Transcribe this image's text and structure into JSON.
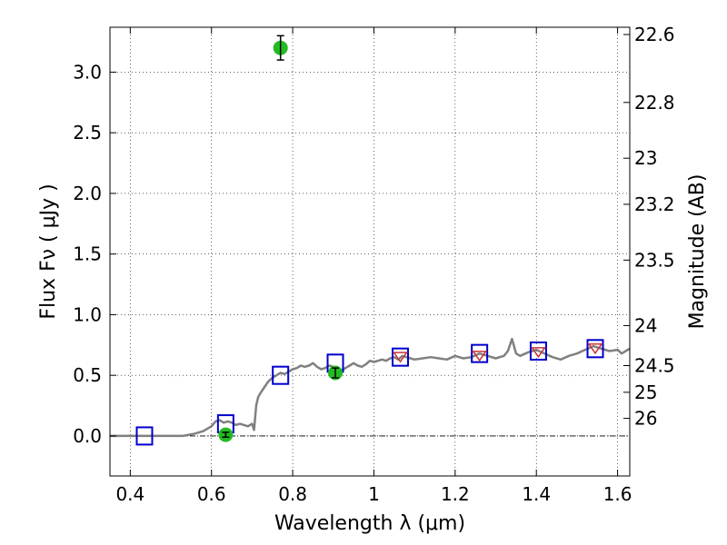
{
  "chart_data": {
    "type": "scatter",
    "xlabel": "Wavelength  λ (μm)",
    "ylabel": "Flux  Fν  ( μJy )",
    "y2label": "Magnitude (AB)",
    "xlim": [
      0.35,
      1.63
    ],
    "ylim": [
      -0.33,
      3.37
    ],
    "grid": true,
    "x_ticks": [
      0.4,
      0.6,
      0.8,
      1.0,
      1.2,
      1.4,
      1.6
    ],
    "x_tick_labels": [
      "0.4",
      "0.6",
      "0.8",
      "1",
      "1.2",
      "1.4",
      "1.6"
    ],
    "y_ticks": [
      0.0,
      0.5,
      1.0,
      1.5,
      2.0,
      2.5,
      3.0
    ],
    "y_tick_labels": [
      "0.0",
      "0.5",
      "1.0",
      "1.5",
      "2.0",
      "2.5",
      "3.0"
    ],
    "mag_ticks": [
      {
        "label": "22.6",
        "flux": 3.31
      },
      {
        "label": "22.8",
        "flux": 2.75
      },
      {
        "label": "23",
        "flux": 2.29
      },
      {
        "label": "23.2",
        "flux": 1.91
      },
      {
        "label": "23.5",
        "flux": 1.45
      },
      {
        "label": "24",
        "flux": 0.91
      },
      {
        "label": "24.5",
        "flux": 0.58
      },
      {
        "label": "25",
        "flux": 0.36
      },
      {
        "label": "26",
        "flux": 0.145
      }
    ],
    "colors": {
      "observed": "#22bb22",
      "model_box": "#0000cc",
      "model_spectrum_point": "#cc3333",
      "template": "#808080",
      "zero_line": "#000000"
    },
    "template_spectrum": {
      "x": [
        0.35,
        0.44,
        0.5,
        0.53,
        0.56,
        0.58,
        0.6,
        0.61,
        0.62,
        0.63,
        0.64,
        0.65,
        0.66,
        0.67,
        0.68,
        0.69,
        0.7,
        0.705,
        0.71,
        0.715,
        0.72,
        0.73,
        0.74,
        0.75,
        0.76,
        0.77,
        0.78,
        0.79,
        0.8,
        0.81,
        0.82,
        0.83,
        0.84,
        0.85,
        0.86,
        0.87,
        0.88,
        0.89,
        0.9,
        0.91,
        0.92,
        0.93,
        0.94,
        0.95,
        0.96,
        0.97,
        0.98,
        0.99,
        1.0,
        1.01,
        1.02,
        1.03,
        1.04,
        1.05,
        1.06,
        1.07,
        1.08,
        1.09,
        1.1,
        1.12,
        1.14,
        1.16,
        1.18,
        1.2,
        1.22,
        1.24,
        1.26,
        1.28,
        1.3,
        1.32,
        1.33,
        1.34,
        1.35,
        1.36,
        1.38,
        1.4,
        1.42,
        1.44,
        1.46,
        1.48,
        1.5,
        1.52,
        1.54,
        1.56,
        1.58,
        1.6,
        1.61,
        1.62,
        1.63
      ],
      "y": [
        0.0,
        0.0,
        0.0,
        0.0,
        0.02,
        0.04,
        0.08,
        0.12,
        0.13,
        0.11,
        0.12,
        0.11,
        0.09,
        0.1,
        0.09,
        0.08,
        0.1,
        0.05,
        0.25,
        0.32,
        0.35,
        0.4,
        0.45,
        0.48,
        0.5,
        0.52,
        0.51,
        0.53,
        0.55,
        0.56,
        0.58,
        0.57,
        0.58,
        0.6,
        0.57,
        0.55,
        0.56,
        0.58,
        0.57,
        0.55,
        0.54,
        0.56,
        0.58,
        0.6,
        0.58,
        0.57,
        0.59,
        0.62,
        0.61,
        0.62,
        0.63,
        0.62,
        0.64,
        0.65,
        0.63,
        0.66,
        0.65,
        0.64,
        0.63,
        0.64,
        0.65,
        0.64,
        0.63,
        0.66,
        0.64,
        0.65,
        0.68,
        0.66,
        0.64,
        0.66,
        0.7,
        0.8,
        0.68,
        0.66,
        0.69,
        0.71,
        0.68,
        0.65,
        0.63,
        0.66,
        0.68,
        0.71,
        0.74,
        0.72,
        0.7,
        0.71,
        0.68,
        0.7,
        0.72
      ]
    },
    "model_boxes": [
      {
        "x": 0.435,
        "y": 0.0
      },
      {
        "x": 0.635,
        "y": 0.1
      },
      {
        "x": 0.77,
        "y": 0.5
      },
      {
        "x": 0.905,
        "y": 0.6
      },
      {
        "x": 1.065,
        "y": 0.65
      },
      {
        "x": 1.26,
        "y": 0.68
      },
      {
        "x": 1.405,
        "y": 0.7
      },
      {
        "x": 1.545,
        "y": 0.72
      }
    ],
    "model_points": [
      {
        "x": 1.065,
        "y": 0.65
      },
      {
        "x": 1.26,
        "y": 0.66
      },
      {
        "x": 1.405,
        "y": 0.69
      },
      {
        "x": 1.545,
        "y": 0.72
      }
    ],
    "observed": [
      {
        "x": 0.635,
        "y": 0.01,
        "err": 0.02
      },
      {
        "x": 0.77,
        "y": 3.2,
        "err": 0.1
      },
      {
        "x": 0.905,
        "y": 0.52,
        "err": 0.04
      }
    ]
  }
}
